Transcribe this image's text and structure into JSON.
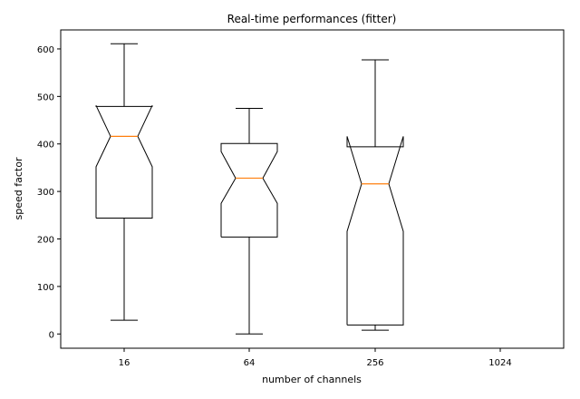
{
  "chart_data": {
    "type": "boxplot",
    "title": "Real-time performances (fitter)",
    "xlabel": "number of channels",
    "ylabel": "speed factor",
    "categories": [
      "16",
      "64",
      "256",
      "1024"
    ],
    "yticks": [
      0,
      100,
      200,
      300,
      400,
      500,
      600
    ],
    "ylim": [
      -30,
      640
    ],
    "notched": true,
    "grid": false,
    "boxes": [
      {
        "category": "16",
        "whisker_low": 29,
        "q1": 244,
        "notch_low": 352,
        "median": 416,
        "notch_high": 481,
        "q3": 479,
        "whisker_high": 611
      },
      {
        "category": "64",
        "whisker_low": 0,
        "q1": 204,
        "notch_low": 275,
        "median": 328,
        "notch_high": 384,
        "q3": 401,
        "whisker_high": 475
      },
      {
        "category": "256",
        "whisker_low": 8,
        "q1": 19,
        "notch_low": 216,
        "median": 316,
        "notch_high": 416,
        "q3": 394,
        "whisker_high": 577
      }
    ],
    "colors": {
      "box": "#000000",
      "median": "#ff7f0e"
    }
  }
}
